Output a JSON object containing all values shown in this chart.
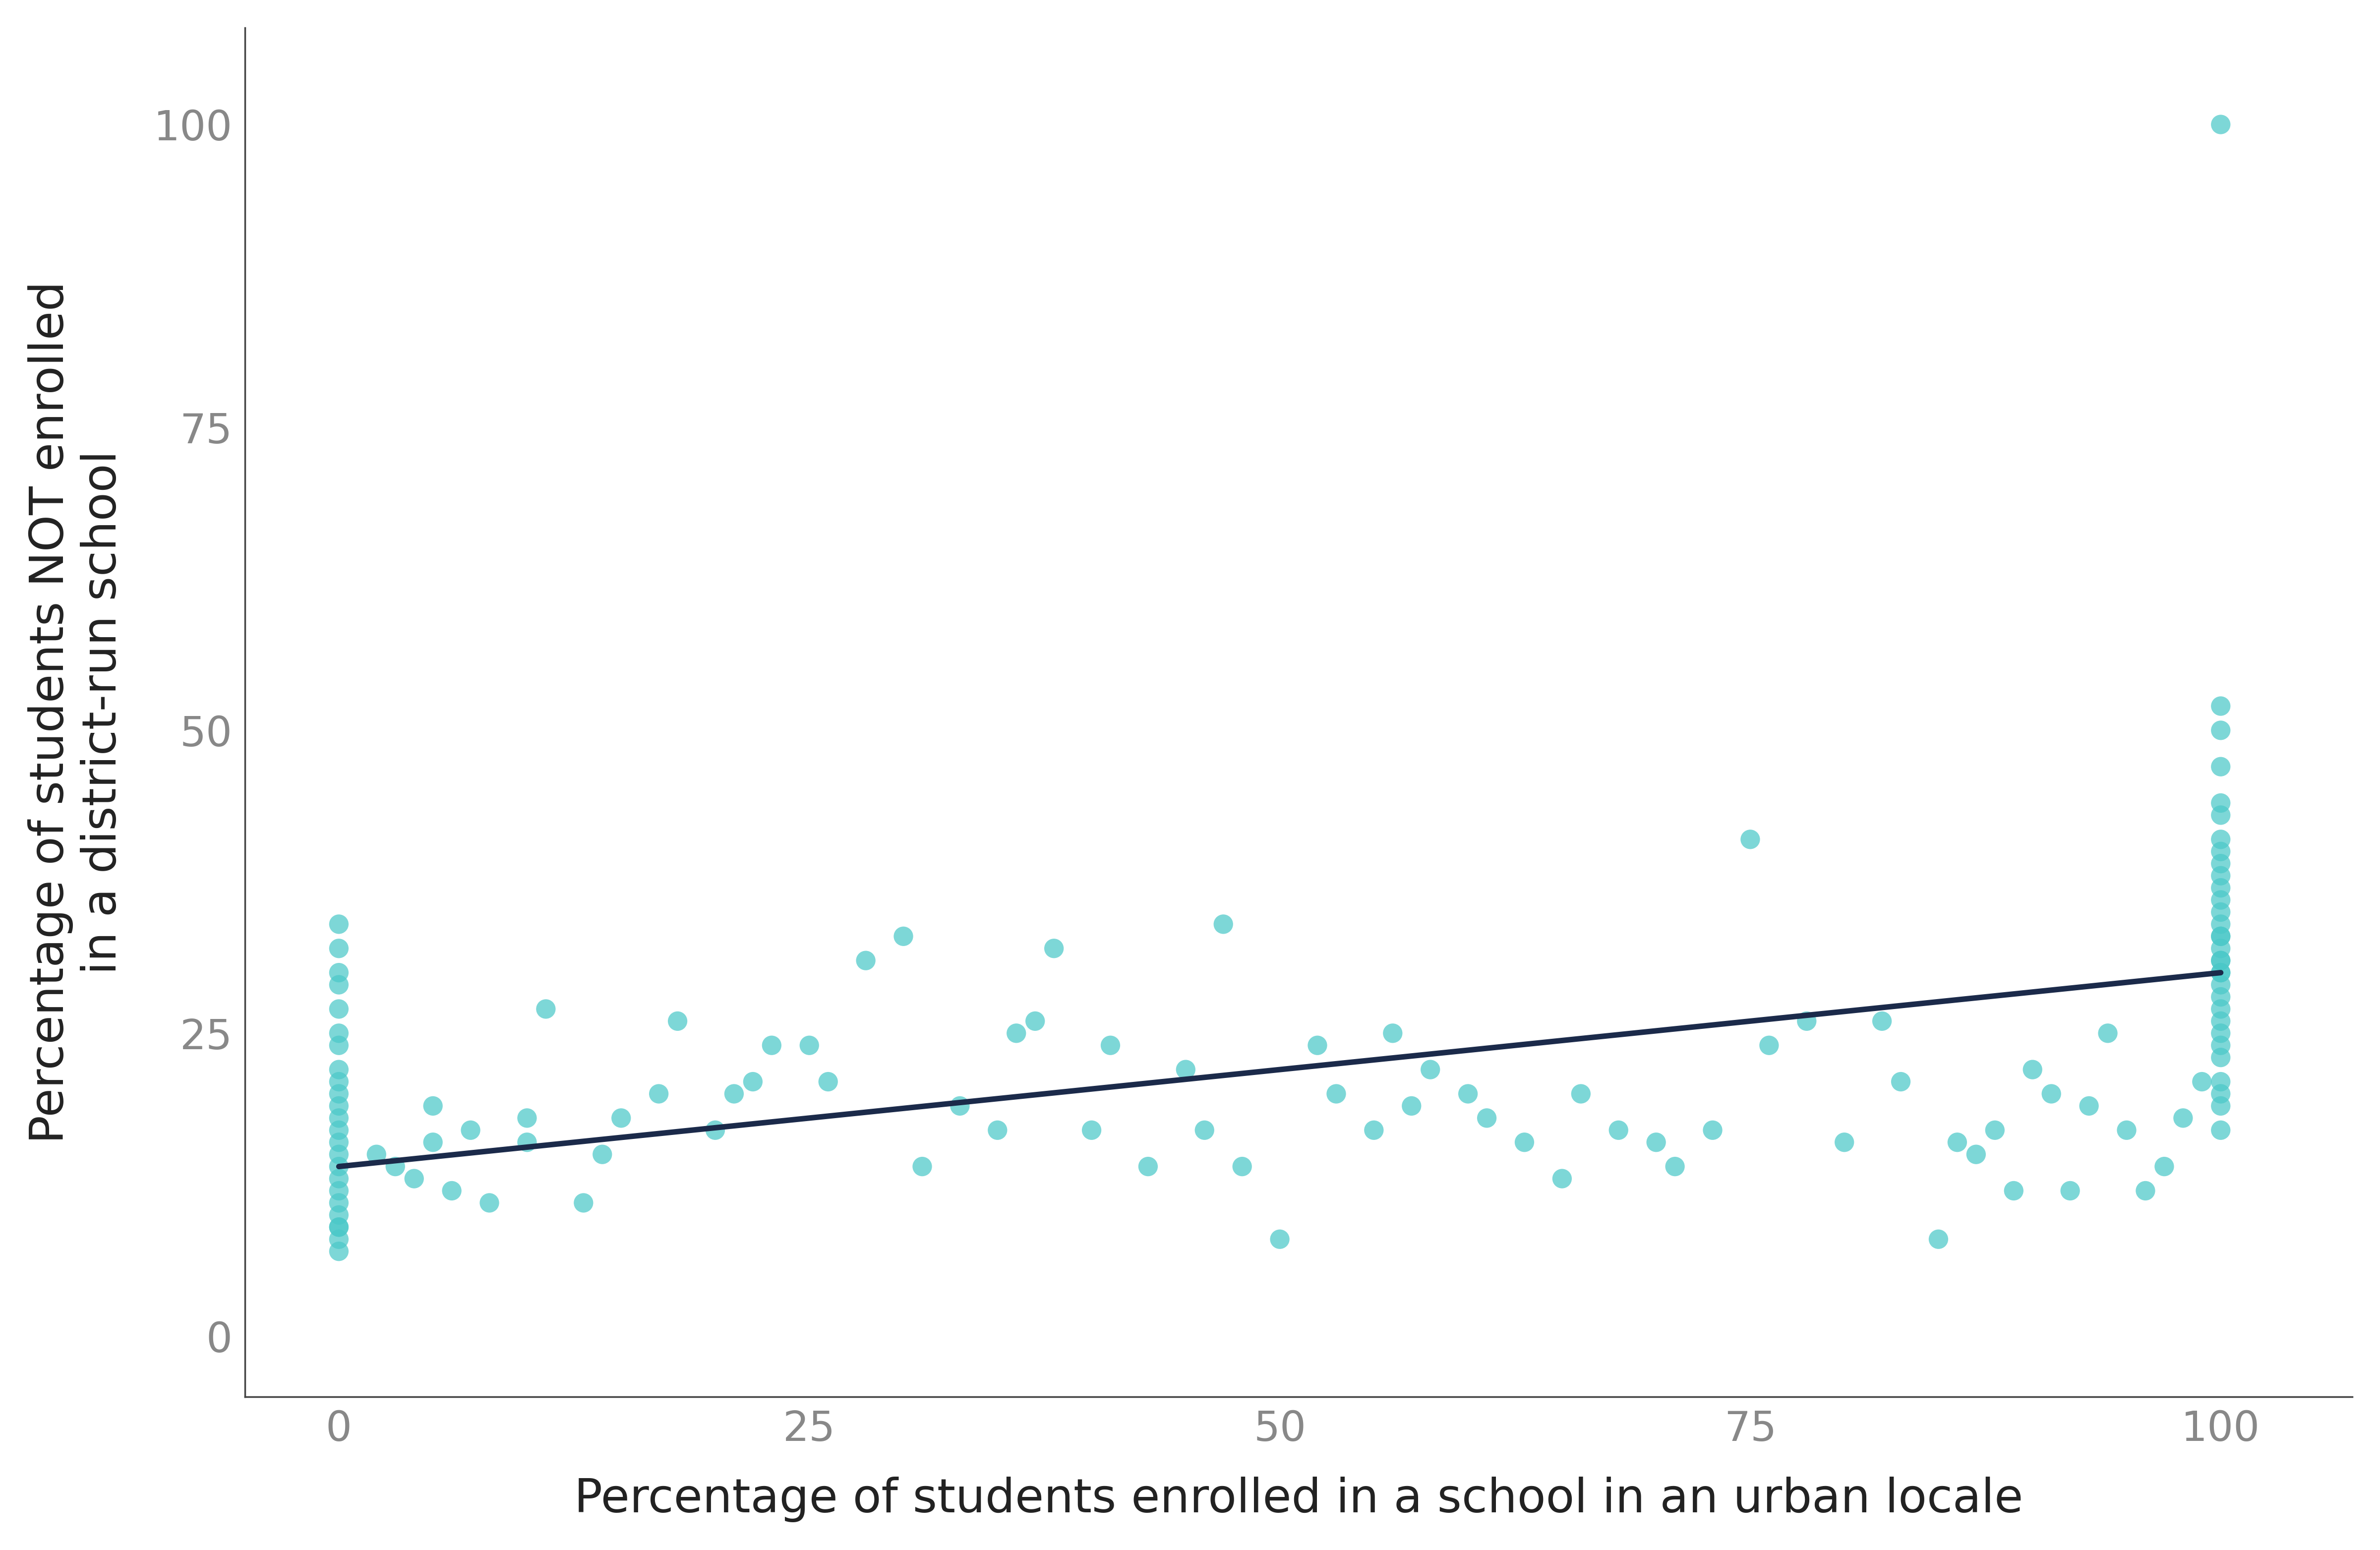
{
  "scatter_x": [
    0,
    0,
    0,
    0,
    0,
    0,
    0,
    0,
    0,
    0,
    0,
    0,
    0,
    0,
    0,
    0,
    0,
    0,
    0,
    0,
    0,
    0,
    0,
    0,
    2,
    3,
    4,
    5,
    5,
    6,
    7,
    8,
    10,
    10,
    11,
    13,
    14,
    15,
    17,
    18,
    20,
    21,
    22,
    23,
    25,
    26,
    28,
    30,
    31,
    33,
    35,
    36,
    37,
    38,
    40,
    41,
    43,
    45,
    46,
    47,
    48,
    50,
    52,
    53,
    55,
    56,
    57,
    58,
    60,
    61,
    63,
    65,
    66,
    68,
    70,
    71,
    73,
    75,
    76,
    78,
    80,
    82,
    83,
    85,
    86,
    87,
    88,
    89,
    90,
    91,
    92,
    93,
    94,
    95,
    96,
    97,
    98,
    99,
    100,
    100,
    100,
    100,
    100,
    100,
    100,
    100,
    100,
    100,
    100,
    100,
    100,
    100,
    100,
    100,
    100,
    100,
    100,
    100,
    100,
    100,
    100,
    100,
    100,
    100,
    100,
    100,
    100,
    100,
    100,
    100
  ],
  "scatter_y": [
    7,
    8,
    9,
    9,
    10,
    11,
    12,
    13,
    14,
    15,
    16,
    17,
    18,
    19,
    20,
    21,
    22,
    24,
    25,
    27,
    29,
    30,
    32,
    34,
    15,
    14,
    13,
    16,
    19,
    12,
    17,
    11,
    16,
    18,
    27,
    11,
    15,
    18,
    20,
    26,
    17,
    20,
    21,
    24,
    24,
    21,
    31,
    33,
    14,
    19,
    17,
    25,
    26,
    32,
    17,
    24,
    14,
    22,
    17,
    34,
    14,
    8,
    24,
    20,
    17,
    25,
    19,
    22,
    20,
    18,
    16,
    13,
    20,
    17,
    16,
    14,
    17,
    41,
    24,
    26,
    16,
    26,
    21,
    8,
    16,
    15,
    17,
    12,
    22,
    20,
    12,
    19,
    25,
    17,
    12,
    14,
    18,
    21,
    100,
    52,
    50,
    47,
    44,
    43,
    41,
    40,
    39,
    38,
    37,
    36,
    35,
    34,
    33,
    33,
    32,
    31,
    31,
    30,
    30,
    29,
    28,
    27,
    26,
    25,
    24,
    23,
    21,
    20,
    19,
    17
  ],
  "line_x": [
    0,
    100
  ],
  "line_y": [
    14.0,
    30.0
  ],
  "point_color": "#4BC8C8",
  "line_color": "#1B2A4A",
  "point_alpha": 0.72,
  "point_size": 800,
  "line_width": 8,
  "xlabel": "Percentage of students enrolled in a school in an urban locale",
  "ylabel": "Percentage of students NOT enrolled\nin a district-run school",
  "xlim": [
    -5,
    107
  ],
  "ylim": [
    -5,
    108
  ],
  "xticks": [
    0,
    25,
    50,
    75,
    100
  ],
  "yticks": [
    0,
    25,
    50,
    75,
    100
  ],
  "xlabel_fontsize": 68,
  "ylabel_fontsize": 68,
  "tick_fontsize": 60,
  "tick_color": "#888888",
  "label_color": "#222222",
  "background_color": "#ffffff",
  "spine_color": "#444444",
  "spine_linewidth": 2.5
}
